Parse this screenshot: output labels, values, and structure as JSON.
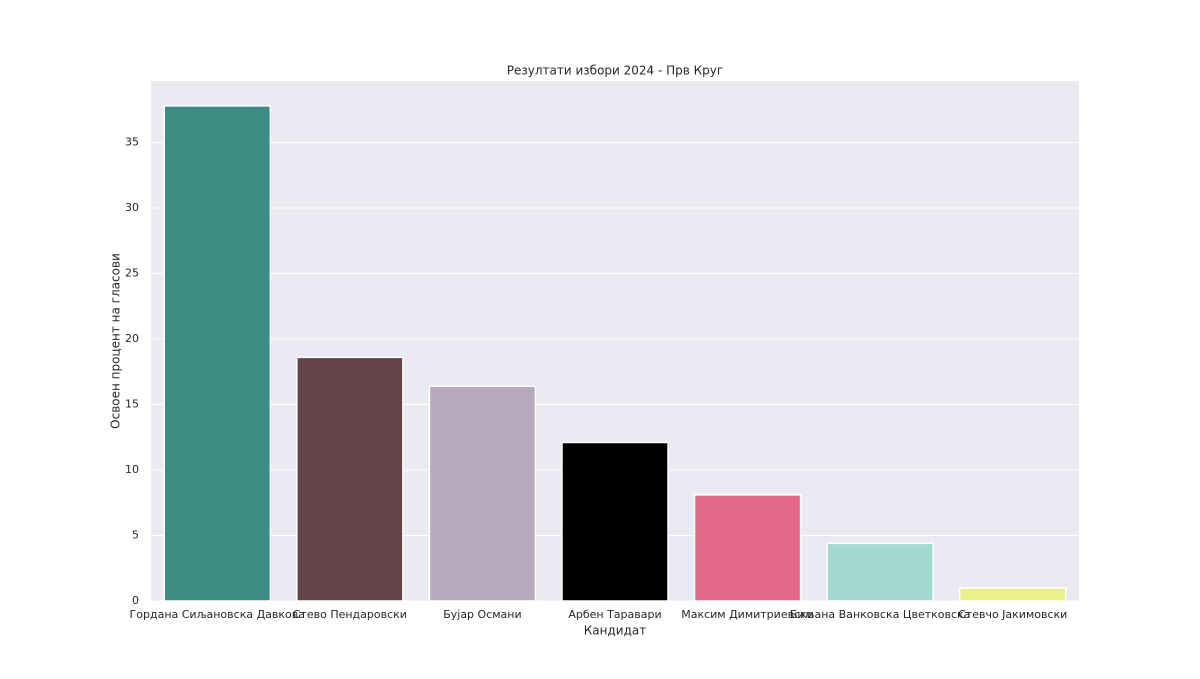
{
  "chart_data": {
    "type": "bar",
    "title": "Резултати избори 2024 - Прв Круг",
    "x_label": "Кандидат",
    "y_label": "Освоен процент на гласови",
    "categories": [
      "Гордана Сиљановска Давкова",
      "Стево Пендаровски",
      "Бујар Османи",
      "Арбен Таравари",
      "Максим Димитриевски",
      "Биљана Ванковска Цветковска",
      "Стевчо Јакимовски"
    ],
    "values": [
      37.8,
      18.6,
      16.4,
      12.1,
      8.1,
      4.4,
      1.0
    ],
    "colors": [
      "#3d8c84",
      "#624449",
      "#b8a9bd",
      "#000000",
      "#e36886",
      "#a2d9d0",
      "#eaf08a"
    ],
    "ylim": [
      0,
      39.7
    ],
    "yticks": [
      0,
      5,
      10,
      15,
      20,
      25,
      30,
      35
    ],
    "grid": true
  }
}
